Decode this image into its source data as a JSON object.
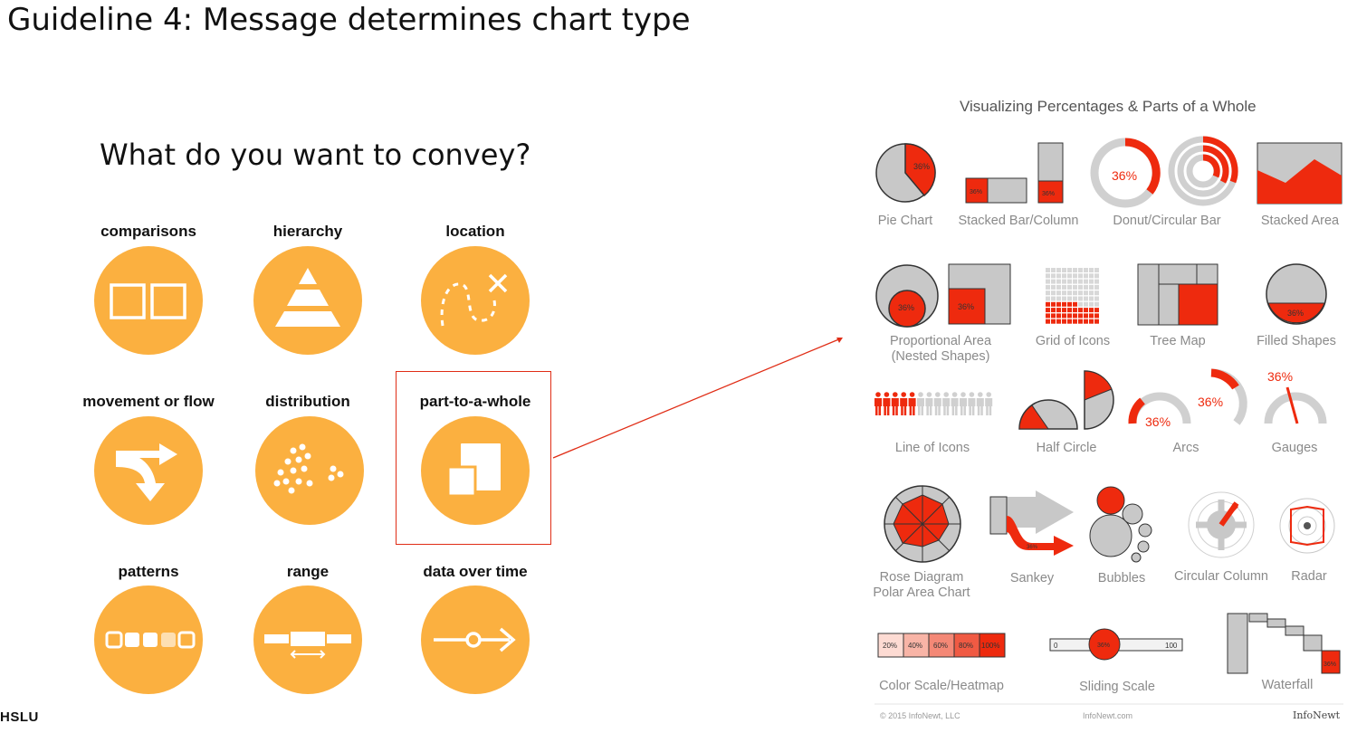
{
  "slide": {
    "title": "Guideline 4: Message determines chart type",
    "question": "What do you want to convey?",
    "logo": "HSLU"
  },
  "categories": [
    {
      "label": "comparisons",
      "icon": "two-squares-icon"
    },
    {
      "label": "hierarchy",
      "icon": "pyramid-icon"
    },
    {
      "label": "location",
      "icon": "dotted-path-x-icon"
    },
    {
      "label": "movement or flow",
      "icon": "flow-arrow-icon"
    },
    {
      "label": "distribution",
      "icon": "scatter-dots-icon"
    },
    {
      "label": "part-to-a-whole",
      "icon": "overlapping-squares-icon",
      "highlighted": true
    },
    {
      "label": "patterns",
      "icon": "pattern-row-icon"
    },
    {
      "label": "range",
      "icon": "range-bar-icon"
    },
    {
      "label": "data over time",
      "icon": "timeline-arrow-icon"
    }
  ],
  "colors": {
    "circle": "#FBB040",
    "highlight": "#E02D16",
    "accent_red": "#EE2A0E",
    "neutral_gray": "#C8C8C8"
  },
  "infographic": {
    "title": "Visualizing Percentages & Parts of a Whole",
    "percent": "36%",
    "charts": [
      "Pie Chart",
      "Stacked Bar/Column",
      "Donut/Circular Bar",
      "Stacked Area",
      "Proportional Area\n(Nested Shapes)",
      "Grid of Icons",
      "Tree Map",
      "Filled Shapes",
      "Line of Icons",
      "Half Circle",
      "Arcs",
      "Gauges",
      "Rose Diagram\nPolar Area Chart",
      "Sankey",
      "Bubbles",
      "Circular Column",
      "Radar",
      "Color Scale/Heatmap",
      "Sliding Scale",
      "Waterfall"
    ],
    "heatmap_steps": [
      "20%",
      "40%",
      "60%",
      "80%",
      "100%"
    ],
    "slider_min": "0",
    "slider_max": "100",
    "footer_left": "© 2015 InfoNewt, LLC",
    "footer_center": "InfoNewt.com",
    "footer_right": "InfoNewt"
  }
}
